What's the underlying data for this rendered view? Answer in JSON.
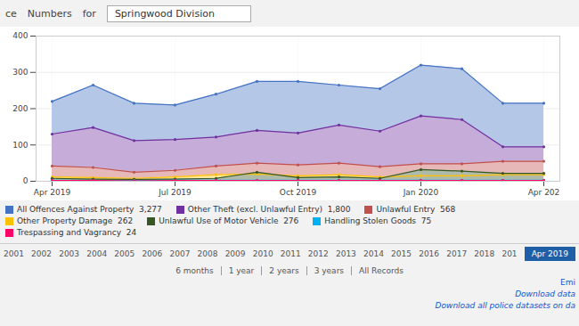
{
  "chart_data": {
    "type": "area",
    "marker": "circle",
    "grid": true,
    "categories": [
      "Apr 2019",
      null,
      null,
      "Jul 2019",
      null,
      null,
      "Oct 2019",
      null,
      null,
      "Jan 2020",
      null,
      null,
      "Apr 202"
    ],
    "ylim": [
      0,
      400
    ],
    "yticks": [
      0,
      100,
      200,
      300,
      400
    ],
    "series": [
      {
        "name": "All Offences Against Property  3,277",
        "color": "#4472c4",
        "values": [
          220,
          265,
          215,
          210,
          240,
          275,
          275,
          265,
          255,
          320,
          310,
          215,
          215
        ]
      },
      {
        "name": "Other Theft (excl. Unlawful Entry)  1,800",
        "color": "#7030a0",
        "values": [
          130,
          148,
          112,
          115,
          122,
          140,
          133,
          155,
          138,
          180,
          170,
          95,
          95
        ]
      },
      {
        "name": "Unlawful Entry  568",
        "color": "#c0504d",
        "values": [
          42,
          38,
          25,
          30,
          42,
          50,
          45,
          50,
          40,
          48,
          48,
          55,
          55
        ]
      },
      {
        "name": "Other Property Damage  262",
        "color": "#ffc000",
        "values": [
          12,
          10,
          8,
          12,
          18,
          20,
          15,
          18,
          12,
          15,
          15,
          18,
          18
        ]
      },
      {
        "name": "Unlawful Use of Motor Vehicle  276",
        "color": "#375623",
        "values": [
          8,
          6,
          5,
          6,
          8,
          25,
          10,
          12,
          8,
          32,
          28,
          22,
          22
        ]
      },
      {
        "name": "Handling Stolen Goods  75",
        "color": "#00b0f0",
        "values": [
          3,
          2,
          2,
          3,
          3,
          3,
          3,
          3,
          3,
          3,
          3,
          3,
          3
        ]
      },
      {
        "name": "Trespassing and Vagrancy  24",
        "color": "#ff0066",
        "values": [
          2,
          2,
          1,
          2,
          2,
          2,
          2,
          2,
          2,
          2,
          2,
          2,
          2
        ]
      }
    ],
    "annotations": {
      "header": [
        "ce",
        "Numbers",
        "for",
        "Springwood Division"
      ],
      "timeline": [
        "2001",
        "2002",
        "2003",
        "2004",
        "2005",
        "2006",
        "2007",
        "2008",
        "2009",
        "2010",
        "2011",
        "2012",
        "2013",
        "2014",
        "2015",
        "2016",
        "2017",
        "2018",
        "201"
      ],
      "selected": "Apr 2019",
      "period_links": [
        "6 months",
        "1 year",
        "2 years",
        "3 years",
        "All Records"
      ],
      "links": [
        "Emi",
        "Download data",
        "Download all police datasets on da"
      ]
    }
  }
}
